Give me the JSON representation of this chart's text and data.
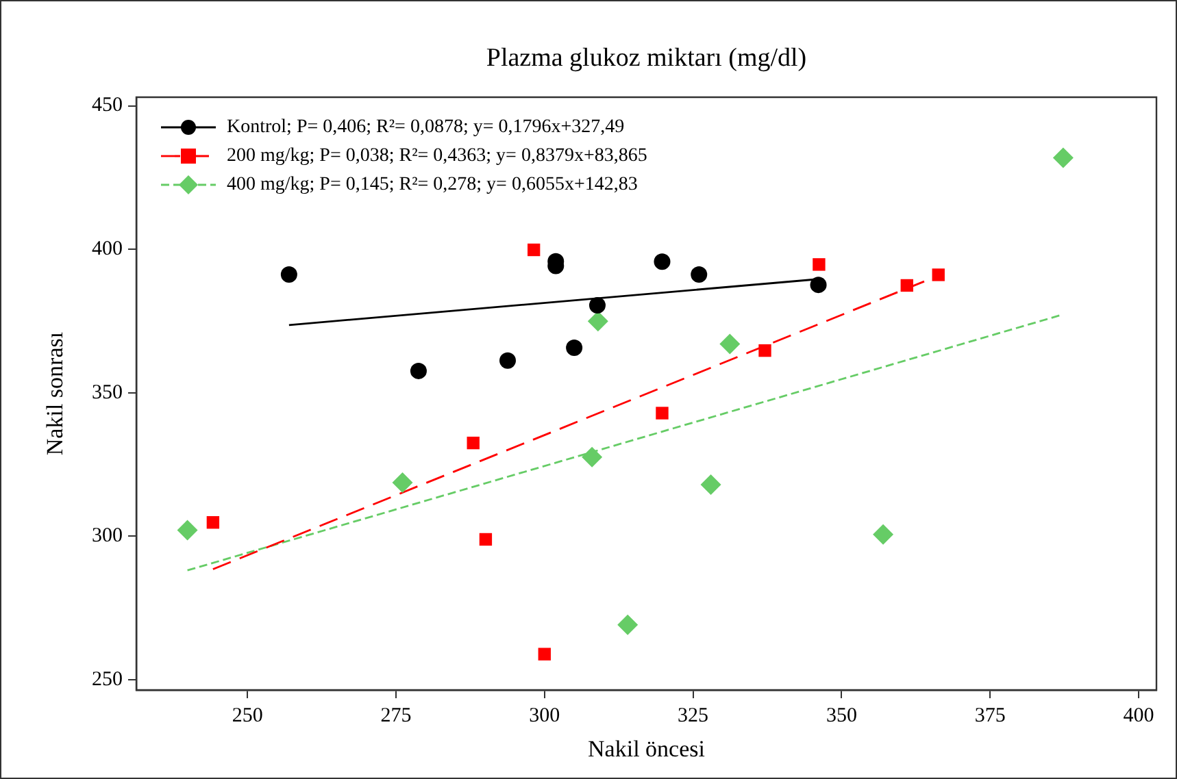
{
  "chart_data": {
    "type": "scatter",
    "title": "Plazma glukoz miktarı (mg/dl)",
    "xlabel": "Nakil öncesi",
    "ylabel": "Nakil sonrası",
    "xlim": [
      231.3,
      403
    ],
    "ylim": [
      246.4,
      453
    ],
    "xticks": [
      250,
      275,
      300,
      325,
      350,
      375,
      400
    ],
    "yticks": [
      250,
      300,
      350,
      400,
      450
    ],
    "grid": false,
    "legend": "top left",
    "series": [
      {
        "name": "Kontrol; P= 0,406; R²= 0,0878; y= 0,1796x+327,49",
        "type": "scatter",
        "marker": "circle",
        "color": "#000000",
        "x": [
          257.0,
          278.8,
          293.8,
          301.9,
          301.9,
          305.0,
          308.9,
          319.8,
          326.0,
          346.1
        ],
        "values": [
          391.2,
          357.6,
          361.2,
          395.8,
          394.2,
          365.7,
          380.5,
          395.7,
          391.2,
          387.6
        ]
      },
      {
        "name": "200 mg/kg; P= 0,038; R²= 0,4363; y= 0,8379x+83,865",
        "type": "scatter",
        "marker": "square",
        "color": "#ff0000",
        "x": [
          244.2,
          288.0,
          290.1,
          298.2,
          300.0,
          319.8,
          337.1,
          346.2,
          361.0,
          366.3
        ],
        "values": [
          304.8,
          332.5,
          298.9,
          399.8,
          258.9,
          342.9,
          364.7,
          394.7,
          387.4,
          391.1
        ]
      },
      {
        "name": "400 mg/kg; P= 0,145; R²= 0,278; y= 0,6055x+142,83",
        "type": "scatter",
        "marker": "diamond",
        "color": "#66cc66",
        "x": [
          239.9,
          276.1,
          308.0,
          309.0,
          314.0,
          328.0,
          331.2,
          357.0,
          387.3
        ],
        "values": [
          302.1,
          318.7,
          327.6,
          374.9,
          269.1,
          318.0,
          367.0,
          300.6,
          431.9
        ]
      },
      {
        "type": "line",
        "line_style": "solid",
        "color": "#000000",
        "x": [
          257.0,
          346.1
        ],
        "values": [
          373.6,
          389.6
        ]
      },
      {
        "type": "line",
        "line_style": "dashed",
        "color": "#ff0000",
        "x": [
          244.2,
          366.3
        ],
        "values": [
          288.5,
          390.8
        ]
      },
      {
        "type": "line",
        "line_style": "dotted",
        "color": "#66cc66",
        "x": [
          239.9,
          387.3
        ],
        "values": [
          288.1,
          377.3
        ]
      }
    ]
  }
}
